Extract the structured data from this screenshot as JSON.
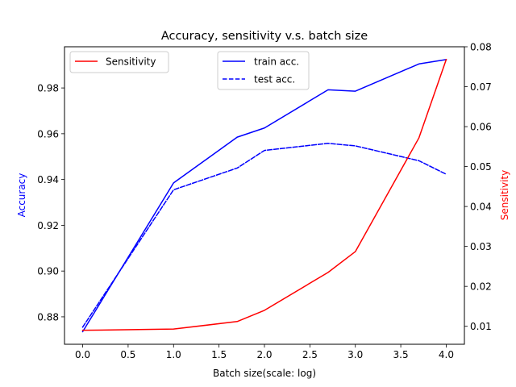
{
  "chart_data": {
    "type": "line",
    "title": "Accuracy, sensitivity v.s. batch size",
    "xlabel": "Batch size(scale: log)",
    "ylabel_left": "Accuracy",
    "ylabel_right": "Sensitivity",
    "xlim": [
      -0.2,
      4.2
    ],
    "ylim_left": [
      0.868,
      0.998
    ],
    "ylim_right": [
      0.0055,
      0.08
    ],
    "x_ticks": [
      0.0,
      0.5,
      1.0,
      1.5,
      2.0,
      2.5,
      3.0,
      3.5,
      4.0
    ],
    "x_tick_labels": [
      "0.0",
      "0.5",
      "1.0",
      "1.5",
      "2.0",
      "2.5",
      "3.0",
      "3.5",
      "4.0"
    ],
    "y_left_ticks": [
      0.88,
      0.9,
      0.92,
      0.94,
      0.96,
      0.98
    ],
    "y_left_tick_labels": [
      "0.88",
      "0.90",
      "0.92",
      "0.94",
      "0.96",
      "0.98"
    ],
    "y_right_ticks": [
      0.01,
      0.02,
      0.03,
      0.04,
      0.05,
      0.06,
      0.07,
      0.08
    ],
    "y_right_tick_labels": [
      "0.01",
      "0.02",
      "0.03",
      "0.04",
      "0.05",
      "0.06",
      "0.07",
      "0.08"
    ],
    "grid": false,
    "colors": {
      "accuracy": "#0000ff",
      "sensitivity": "#ff0000",
      "axis": "#000000"
    },
    "series": [
      {
        "name": "train acc.",
        "axis": "left",
        "color": "#0000ff",
        "style": "solid",
        "x": [
          0.0,
          1.0,
          1.7,
          2.0,
          2.7,
          3.0,
          3.7,
          4.0
        ],
        "values": [
          0.8735,
          0.9385,
          0.9585,
          0.9625,
          0.9792,
          0.9786,
          0.9905,
          0.9924
        ]
      },
      {
        "name": "test acc.",
        "axis": "left",
        "color": "#0000ff",
        "style": "dashed",
        "x": [
          0.0,
          1.0,
          1.7,
          2.0,
          2.7,
          3.0,
          3.7,
          4.0
        ],
        "values": [
          0.8755,
          0.9355,
          0.945,
          0.9527,
          0.9558,
          0.9547,
          0.9482,
          0.9423
        ]
      },
      {
        "name": "Sensitivity",
        "axis": "right",
        "color": "#ff0000",
        "style": "solid",
        "x": [
          0.0,
          1.0,
          1.7,
          2.0,
          2.7,
          3.0,
          3.7,
          4.0
        ],
        "values": [
          0.009,
          0.0093,
          0.0112,
          0.014,
          0.0235,
          0.0287,
          0.0572,
          0.0768
        ]
      }
    ],
    "legends": [
      {
        "placement": "upper-left",
        "entries": [
          "Sensitivity"
        ]
      },
      {
        "placement": "upper-center",
        "entries": [
          "train acc.",
          "test acc."
        ]
      }
    ]
  }
}
